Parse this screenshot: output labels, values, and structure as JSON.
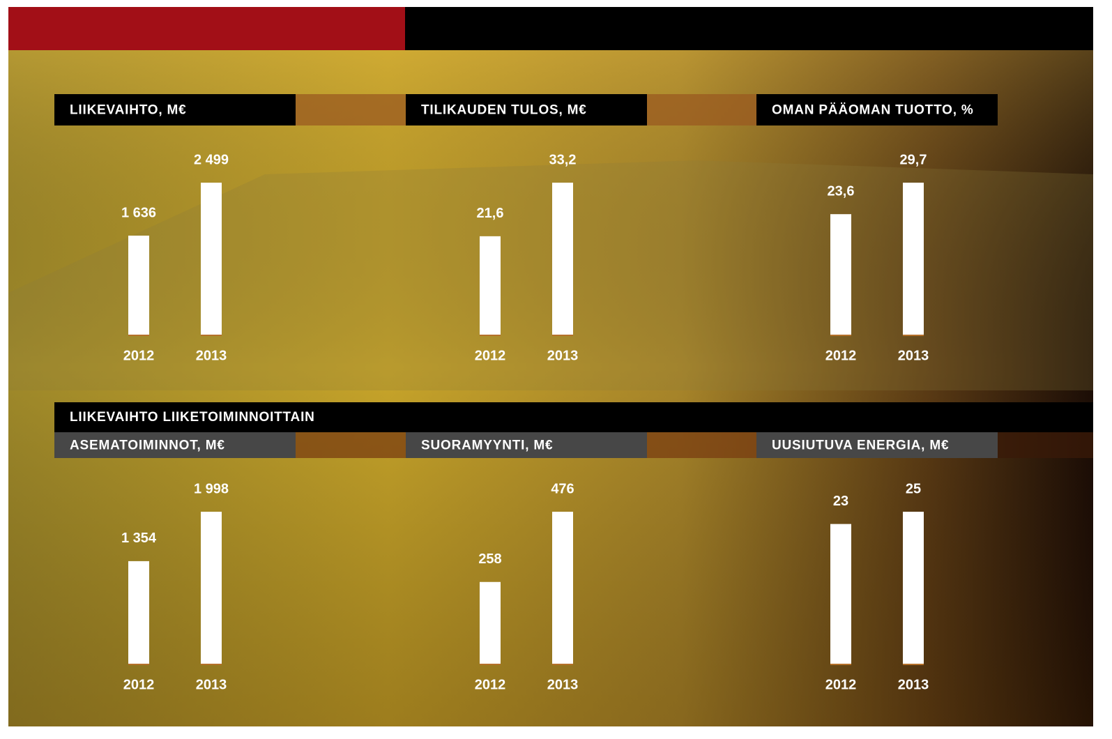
{
  "chart_data": [
    {
      "type": "bar",
      "title": "LIIKEVAIHTO, M€",
      "categories": [
        "2012",
        "2013"
      ],
      "values": [
        1636,
        2499
      ],
      "value_labels": [
        "1 636",
        "2 499"
      ],
      "color": "#ffffff"
    },
    {
      "type": "bar",
      "title": "TILIKAUDEN TULOS, M€",
      "categories": [
        "2012",
        "2013"
      ],
      "values": [
        21.6,
        33.2
      ],
      "value_labels": [
        "21,6",
        "33,2"
      ],
      "color": "#ffffff"
    },
    {
      "type": "bar",
      "title": "OMAN PÄÄOMAN TUOTTO, %",
      "categories": [
        "2012",
        "2013"
      ],
      "values": [
        23.6,
        29.7
      ],
      "value_labels": [
        "23,6",
        "29,7"
      ],
      "color": "#ffffff"
    },
    {
      "type": "bar",
      "title": "ASEMATOIMINNOT, M€",
      "categories": [
        "2012",
        "2013"
      ],
      "values": [
        1354,
        1998
      ],
      "value_labels": [
        "1 354",
        "1 998"
      ],
      "color": "#ffffff"
    },
    {
      "type": "bar",
      "title": "SUORAMYYNTI, M€",
      "categories": [
        "2012",
        "2013"
      ],
      "values": [
        258,
        476
      ],
      "color": "#ffffff"
    },
    {
      "type": "bar",
      "title": "UUSIUTUVA ENERGIA, M€",
      "categories": [
        "2012",
        "2013"
      ],
      "values": [
        23,
        25
      ],
      "color": "#ffffff"
    }
  ],
  "section_title": "LIIKEVAIHTO LIIKETOIMINNOITTAIN"
}
